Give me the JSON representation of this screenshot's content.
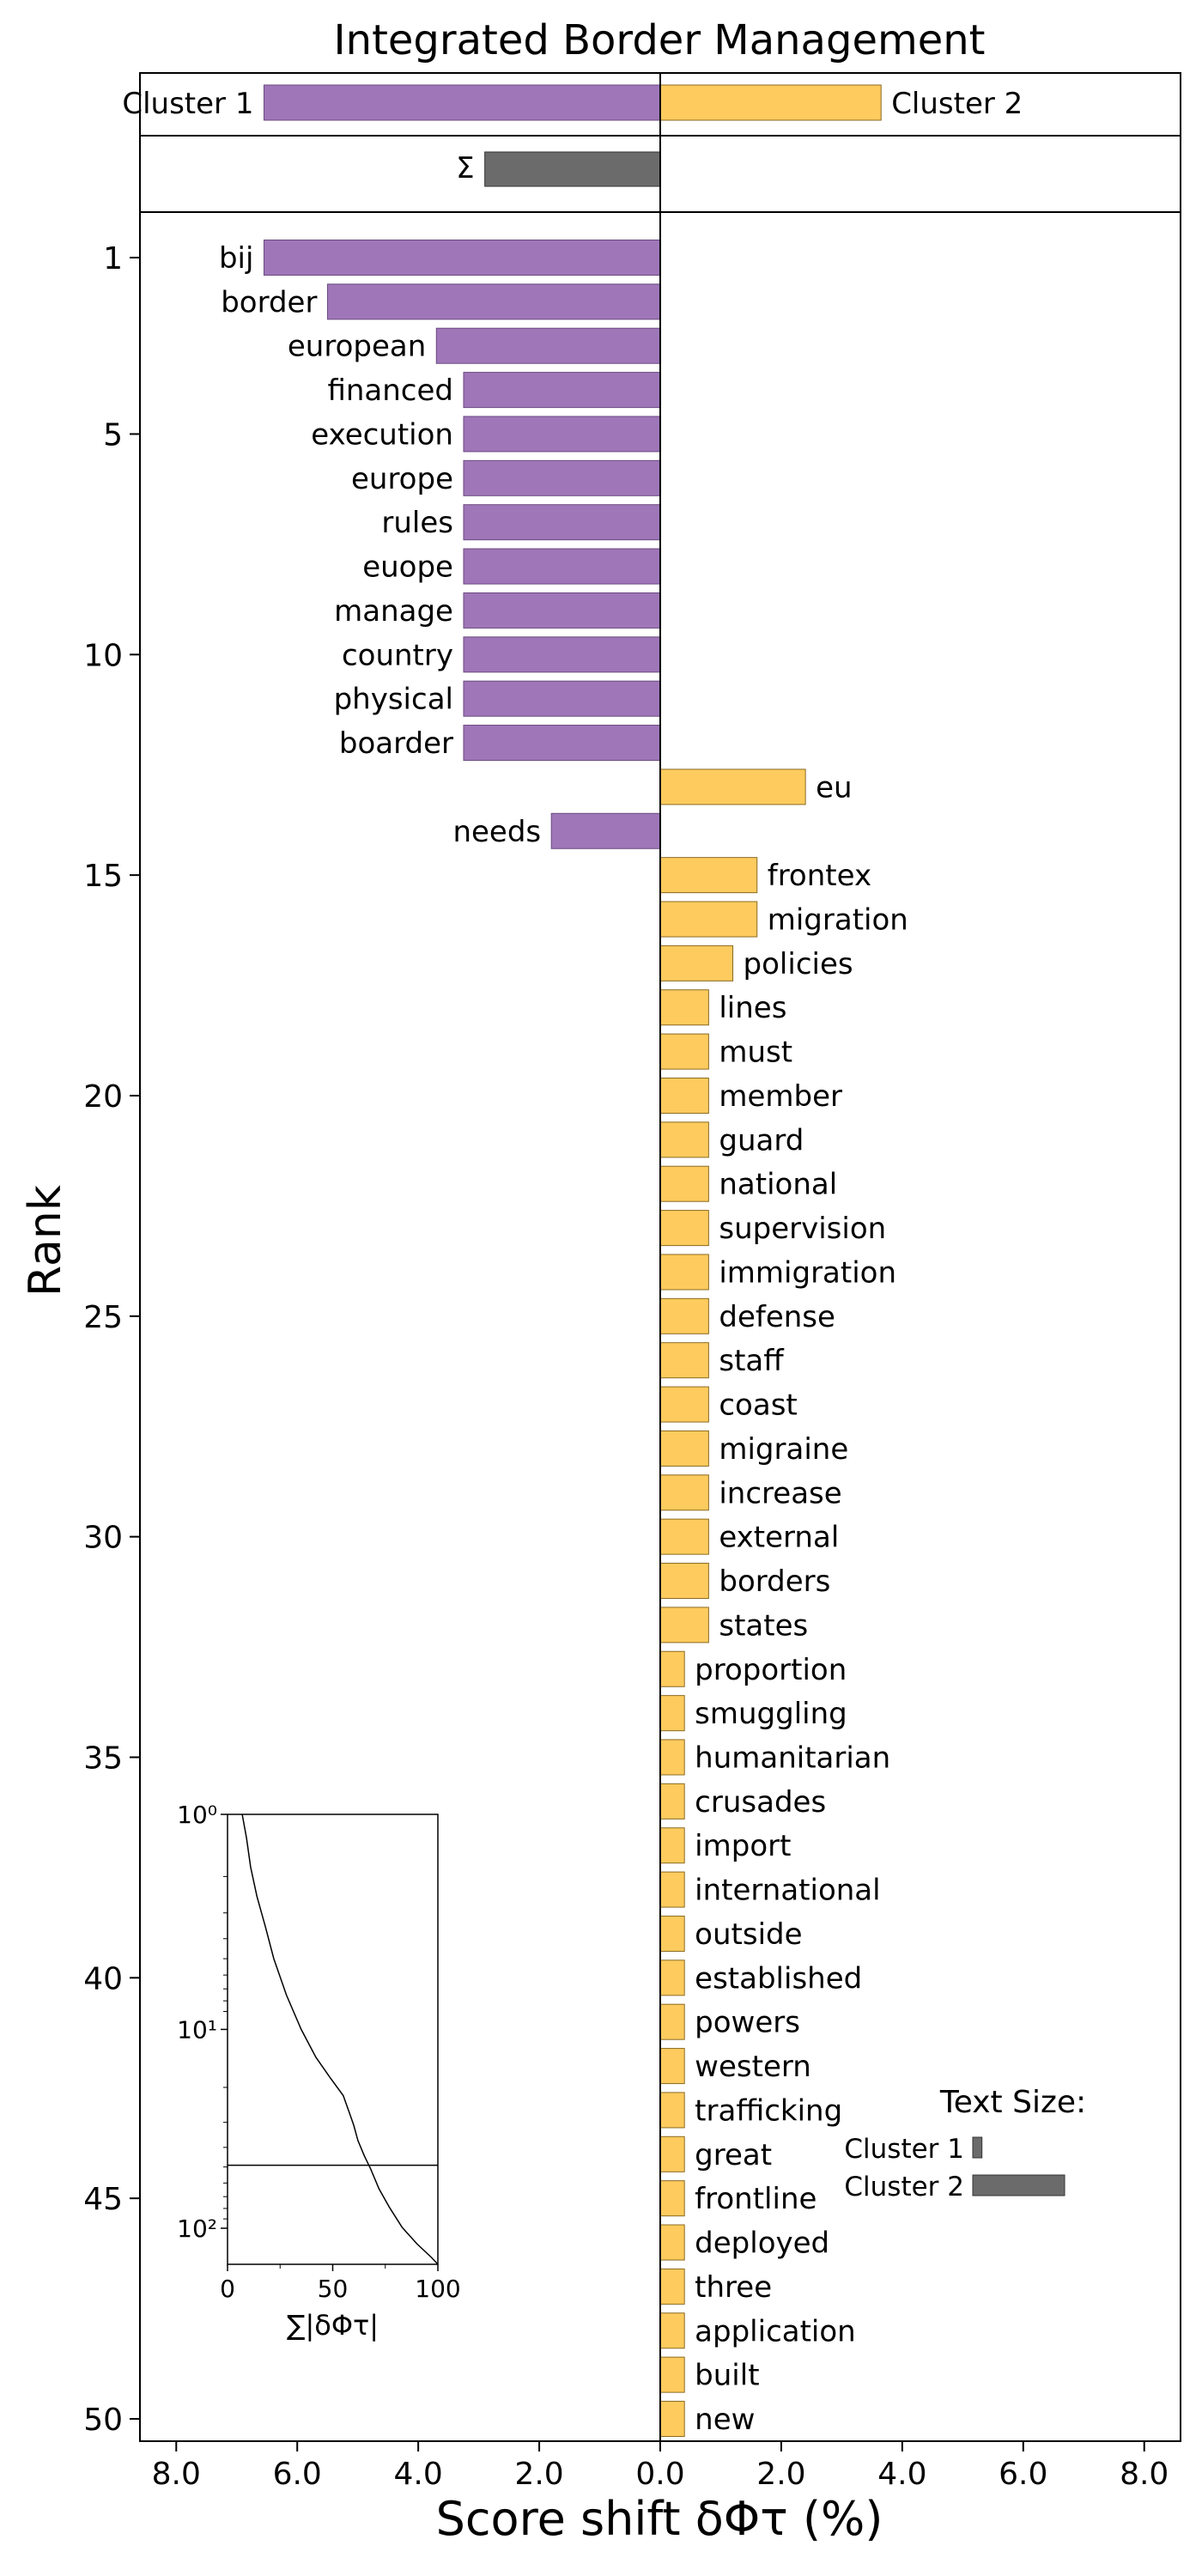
{
  "chart_data": {
    "type": "bar",
    "orientation": "horizontal",
    "title": "Integrated Border Management",
    "xlabel": "Score shift δΦτ (%)",
    "ylabel": "Rank",
    "xlim": [
      -8.6,
      8.6
    ],
    "x_ticks": [
      -8,
      -6,
      -4,
      -2,
      0,
      2,
      4,
      6,
      8
    ],
    "x_tick_labels": [
      "8.0",
      "6.0",
      "4.0",
      "2.0",
      "0.0",
      "2.0",
      "4.0",
      "6.0",
      "8.0"
    ],
    "y_ticks": [
      1,
      5,
      10,
      15,
      20,
      25,
      30,
      35,
      40,
      45,
      50
    ],
    "colors": {
      "cluster1": "#9f77b8",
      "cluster2": "#fecb5e",
      "sum": "#6b6b6b"
    },
    "summary": {
      "cluster1_label": "Cluster 1",
      "cluster2_label": "Cluster 2",
      "cluster1_total": -6.55,
      "cluster2_total": 3.65,
      "sum_label": "Σ",
      "sum_value": -2.9
    },
    "bars": [
      {
        "rank": 1,
        "word": "bij",
        "value": -6.55
      },
      {
        "rank": 2,
        "word": "border",
        "value": -5.5
      },
      {
        "rank": 3,
        "word": "european",
        "value": -3.7
      },
      {
        "rank": 4,
        "word": "financed",
        "value": -3.25
      },
      {
        "rank": 5,
        "word": "execution",
        "value": -3.25
      },
      {
        "rank": 6,
        "word": "europe",
        "value": -3.25
      },
      {
        "rank": 7,
        "word": "rules",
        "value": -3.25
      },
      {
        "rank": 8,
        "word": "euope",
        "value": -3.25
      },
      {
        "rank": 9,
        "word": "manage",
        "value": -3.25
      },
      {
        "rank": 10,
        "word": "country",
        "value": -3.25
      },
      {
        "rank": 11,
        "word": "physical",
        "value": -3.25
      },
      {
        "rank": 12,
        "word": "boarder",
        "value": -3.25
      },
      {
        "rank": 13,
        "word": "eu",
        "value": 2.4
      },
      {
        "rank": 14,
        "word": "needs",
        "value": -1.8
      },
      {
        "rank": 15,
        "word": "frontex",
        "value": 1.6
      },
      {
        "rank": 16,
        "word": "migration",
        "value": 1.6
      },
      {
        "rank": 17,
        "word": "policies",
        "value": 1.2
      },
      {
        "rank": 18,
        "word": "lines",
        "value": 0.8
      },
      {
        "rank": 19,
        "word": "must",
        "value": 0.8
      },
      {
        "rank": 20,
        "word": "member",
        "value": 0.8
      },
      {
        "rank": 21,
        "word": "guard",
        "value": 0.8
      },
      {
        "rank": 22,
        "word": "national",
        "value": 0.8
      },
      {
        "rank": 23,
        "word": "supervision",
        "value": 0.8
      },
      {
        "rank": 24,
        "word": "immigration",
        "value": 0.8
      },
      {
        "rank": 25,
        "word": "defense",
        "value": 0.8
      },
      {
        "rank": 26,
        "word": "staff",
        "value": 0.8
      },
      {
        "rank": 27,
        "word": "coast",
        "value": 0.8
      },
      {
        "rank": 28,
        "word": "migraine",
        "value": 0.8
      },
      {
        "rank": 29,
        "word": "increase",
        "value": 0.8
      },
      {
        "rank": 30,
        "word": "external",
        "value": 0.8
      },
      {
        "rank": 31,
        "word": "borders",
        "value": 0.8
      },
      {
        "rank": 32,
        "word": "states",
        "value": 0.8
      },
      {
        "rank": 33,
        "word": "proportion",
        "value": 0.4
      },
      {
        "rank": 34,
        "word": "smuggling",
        "value": 0.4
      },
      {
        "rank": 35,
        "word": "humanitarian",
        "value": 0.4
      },
      {
        "rank": 36,
        "word": "crusades",
        "value": 0.4
      },
      {
        "rank": 37,
        "word": "import",
        "value": 0.4
      },
      {
        "rank": 38,
        "word": "international",
        "value": 0.4
      },
      {
        "rank": 39,
        "word": "outside",
        "value": 0.4
      },
      {
        "rank": 40,
        "word": "established",
        "value": 0.4
      },
      {
        "rank": 41,
        "word": "powers",
        "value": 0.4
      },
      {
        "rank": 42,
        "word": "western",
        "value": 0.4
      },
      {
        "rank": 43,
        "word": "trafficking",
        "value": 0.4
      },
      {
        "rank": 44,
        "word": "great",
        "value": 0.4
      },
      {
        "rank": 45,
        "word": "frontline",
        "value": 0.4
      },
      {
        "rank": 46,
        "word": "deployed",
        "value": 0.4
      },
      {
        "rank": 47,
        "word": "three",
        "value": 0.4
      },
      {
        "rank": 48,
        "word": "application",
        "value": 0.4
      },
      {
        "rank": 49,
        "word": "built",
        "value": 0.4
      },
      {
        "rank": 50,
        "word": "new",
        "value": 0.4
      }
    ],
    "inset": {
      "type": "line",
      "xlabel": "∑|δΦτ|",
      "x_ticks": [
        0,
        50,
        100
      ],
      "xlim": [
        0,
        100
      ],
      "y_scale": "log",
      "y_tick_labels": [
        "10⁰",
        "10¹",
        "10²"
      ],
      "ylim_rank": [
        1,
        151
      ],
      "reference_rank": 50,
      "curve": [
        [
          7,
          1
        ],
        [
          9,
          1.3
        ],
        [
          11,
          1.8
        ],
        [
          14,
          2.5
        ],
        [
          18,
          3.5
        ],
        [
          22,
          5
        ],
        [
          28,
          7.5
        ],
        [
          35,
          11
        ],
        [
          42,
          15
        ],
        [
          49,
          19
        ],
        [
          55,
          23
        ],
        [
          58,
          28
        ],
        [
          60,
          32
        ],
        [
          62,
          38
        ],
        [
          65,
          45
        ],
        [
          68,
          52
        ],
        [
          72,
          65
        ],
        [
          77,
          80
        ],
        [
          83,
          100
        ],
        [
          90,
          120
        ],
        [
          97,
          140
        ],
        [
          100,
          151
        ]
      ]
    },
    "legend": {
      "title": "Text Size:",
      "cluster1_label": "Cluster 1",
      "cluster2_label": "Cluster 2",
      "cluster1_ratio": 0.1,
      "cluster2_ratio": 1.0
    }
  }
}
